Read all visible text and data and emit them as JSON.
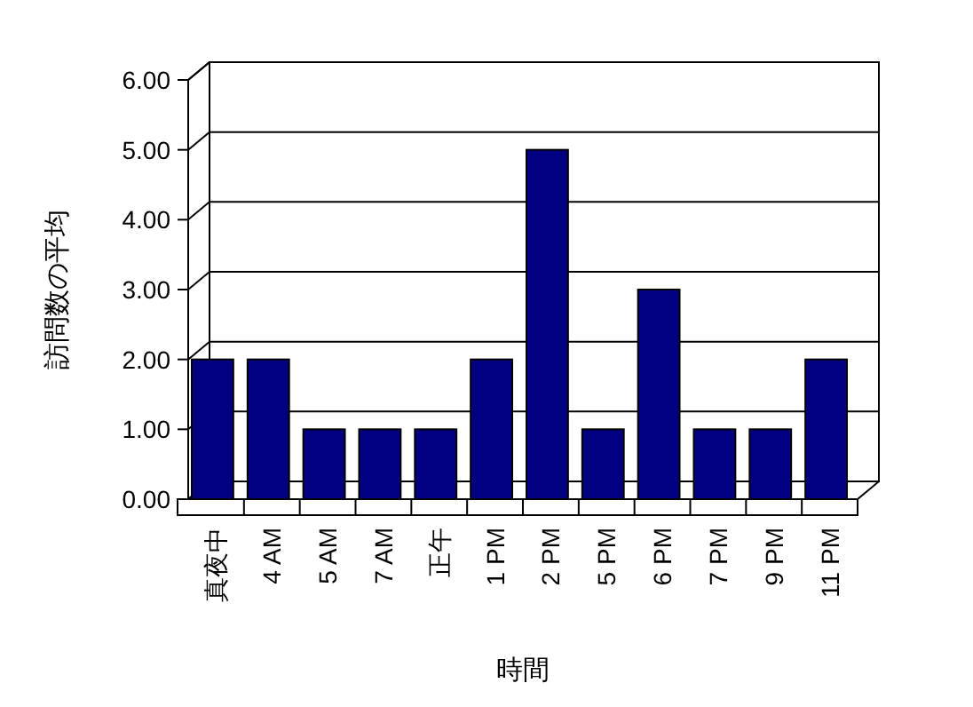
{
  "chart_data": {
    "type": "bar",
    "xlabel": "時間",
    "ylabel": "訪問数の平均",
    "categories": [
      "真夜中",
      "4 AM",
      "5 AM",
      "7 AM",
      "正午",
      "1 PM",
      "2 PM",
      "5 PM",
      "6 PM",
      "7 PM",
      "9 PM",
      "11 PM"
    ],
    "values": [
      2,
      2,
      1,
      1,
      1,
      2,
      5,
      1,
      3,
      1,
      1,
      2
    ],
    "color": "#000080",
    "ylim": [
      0,
      6
    ],
    "yticks": [
      {
        "value": 0,
        "label": "0.00"
      },
      {
        "value": 1,
        "label": "1.00"
      },
      {
        "value": 2,
        "label": "2.00"
      },
      {
        "value": 3,
        "label": "3.00"
      },
      {
        "value": 4,
        "label": "4.00"
      },
      {
        "value": 5,
        "label": "5.00"
      },
      {
        "value": 6,
        "label": "6.00"
      }
    ],
    "grid": "y"
  }
}
